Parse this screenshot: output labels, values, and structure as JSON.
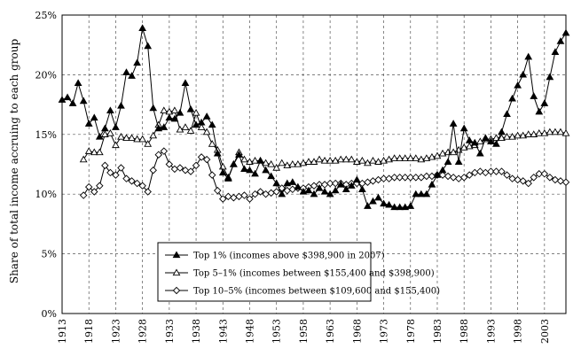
{
  "chart_data": {
    "type": "line",
    "title": "",
    "xlabel": "",
    "ylabel": "Share of total income accruing to each group",
    "xlim": [
      1913,
      2007
    ],
    "ylim": [
      0,
      25
    ],
    "x_ticks": [
      1913,
      1918,
      1923,
      1928,
      1933,
      1938,
      1943,
      1948,
      1953,
      1958,
      1963,
      1968,
      1973,
      1978,
      1983,
      1988,
      1993,
      1998,
      2003
    ],
    "y_ticks": [
      0,
      5,
      10,
      15,
      20,
      25
    ],
    "y_tick_labels": [
      "0%",
      "5%",
      "10%",
      "15%",
      "20%",
      "25%"
    ],
    "grid": "dashed, both axes",
    "legend_position": "bottom-center",
    "series": [
      {
        "name": "Top 1% (incomes above $398,900 in 2007)",
        "marker": "triangle-filled",
        "x": [
          1913,
          1914,
          1915,
          1916,
          1917,
          1918,
          1919,
          1920,
          1921,
          1922,
          1923,
          1924,
          1925,
          1926,
          1927,
          1928,
          1929,
          1930,
          1931,
          1932,
          1933,
          1934,
          1935,
          1936,
          1937,
          1938,
          1939,
          1940,
          1941,
          1942,
          1943,
          1944,
          1945,
          1946,
          1947,
          1948,
          1949,
          1950,
          1951,
          1952,
          1953,
          1954,
          1955,
          1956,
          1957,
          1958,
          1959,
          1960,
          1961,
          1962,
          1963,
          1964,
          1965,
          1966,
          1967,
          1968,
          1969,
          1970,
          1971,
          1972,
          1973,
          1974,
          1975,
          1976,
          1977,
          1978,
          1979,
          1980,
          1981,
          1982,
          1983,
          1984,
          1985,
          1986,
          1987,
          1988,
          1989,
          1990,
          1991,
          1992,
          1993,
          1994,
          1995,
          1996,
          1997,
          1998,
          1999,
          2000,
          2001,
          2002,
          2003,
          2004,
          2005,
          2006,
          2007
        ],
        "values": [
          17.9,
          18.1,
          17.6,
          19.3,
          17.8,
          15.9,
          16.4,
          14.8,
          15.5,
          17.0,
          15.6,
          17.4,
          20.2,
          19.9,
          21.0,
          23.9,
          22.4,
          17.2,
          15.5,
          15.6,
          16.4,
          16.3,
          16.8,
          19.3,
          17.1,
          15.8,
          16.0,
          16.5,
          15.8,
          13.4,
          11.8,
          11.3,
          12.5,
          13.3,
          12.1,
          12.0,
          11.7,
          12.8,
          12.0,
          11.5,
          10.9,
          10.0,
          10.9,
          11.0,
          10.6,
          10.2,
          10.3,
          10.0,
          10.5,
          10.2,
          10.0,
          10.3,
          10.8,
          10.4,
          10.7,
          11.2,
          10.4,
          9.0,
          9.4,
          9.7,
          9.2,
          9.1,
          8.9,
          8.9,
          8.9,
          9.0,
          10.0,
          10.0,
          10.0,
          10.8,
          11.6,
          12.0,
          12.7,
          15.9,
          12.7,
          15.5,
          14.5,
          14.3,
          13.4,
          14.7,
          14.4,
          14.2,
          15.2,
          16.7,
          18.0,
          19.1,
          20.0,
          21.5,
          18.2,
          16.9,
          17.6,
          19.8,
          21.9,
          22.8,
          23.5
        ]
      },
      {
        "name": "Top 5–1% (incomes between $155,400 and $398,900)",
        "marker": "triangle-open",
        "x": [
          1917,
          1918,
          1919,
          1920,
          1921,
          1922,
          1923,
          1924,
          1925,
          1926,
          1927,
          1928,
          1929,
          1930,
          1931,
          1932,
          1933,
          1934,
          1935,
          1936,
          1937,
          1938,
          1939,
          1940,
          1941,
          1942,
          1943,
          1944,
          1945,
          1946,
          1947,
          1948,
          1949,
          1950,
          1951,
          1952,
          1953,
          1954,
          1955,
          1956,
          1957,
          1958,
          1959,
          1960,
          1961,
          1962,
          1963,
          1964,
          1965,
          1966,
          1967,
          1968,
          1969,
          1970,
          1971,
          1972,
          1973,
          1974,
          1975,
          1976,
          1977,
          1978,
          1979,
          1980,
          1981,
          1982,
          1983,
          1984,
          1985,
          1986,
          1987,
          1988,
          1989,
          1990,
          1991,
          1992,
          1993,
          1994,
          1995,
          1996,
          1997,
          1998,
          1999,
          2000,
          2001,
          2002,
          2003,
          2004,
          2005,
          2006,
          2007
        ],
        "values": [
          12.9,
          13.6,
          13.5,
          13.5,
          15.0,
          15.1,
          14.1,
          14.8,
          14.7,
          14.7,
          14.6,
          14.6,
          14.2,
          14.9,
          15.8,
          17.0,
          16.9,
          17.0,
          15.4,
          15.6,
          15.3,
          16.8,
          15.6,
          15.2,
          14.2,
          13.7,
          12.3,
          11.4,
          12.5,
          13.5,
          12.9,
          12.7,
          12.8,
          12.8,
          12.6,
          12.5,
          12.2,
          12.6,
          12.4,
          12.5,
          12.5,
          12.6,
          12.7,
          12.7,
          12.9,
          12.8,
          12.8,
          12.8,
          12.9,
          12.9,
          12.9,
          12.7,
          12.8,
          12.6,
          12.8,
          12.7,
          12.8,
          12.9,
          13.0,
          13.0,
          13.0,
          13.0,
          13.0,
          12.9,
          13.0,
          13.1,
          13.2,
          13.4,
          13.5,
          13.5,
          13.7,
          13.9,
          14.0,
          14.1,
          14.4,
          14.6,
          14.6,
          14.7,
          14.7,
          14.8,
          14.8,
          14.9,
          14.9,
          15.0,
          15.0,
          15.1,
          15.1,
          15.2,
          15.2,
          15.2,
          15.1
        ]
      },
      {
        "name": "Top 10–5% (incomes between $109,600 and $155,400)",
        "marker": "diamond-open",
        "x": [
          1917,
          1918,
          1919,
          1920,
          1921,
          1922,
          1923,
          1924,
          1925,
          1926,
          1927,
          1928,
          1929,
          1930,
          1931,
          1932,
          1933,
          1934,
          1935,
          1936,
          1937,
          1938,
          1939,
          1940,
          1941,
          1942,
          1943,
          1944,
          1945,
          1946,
          1947,
          1948,
          1949,
          1950,
          1951,
          1952,
          1953,
          1954,
          1955,
          1956,
          1957,
          1958,
          1959,
          1960,
          1961,
          1962,
          1963,
          1964,
          1965,
          1966,
          1967,
          1968,
          1969,
          1970,
          1971,
          1972,
          1973,
          1974,
          1975,
          1976,
          1977,
          1978,
          1979,
          1980,
          1981,
          1982,
          1983,
          1984,
          1985,
          1986,
          1987,
          1988,
          1989,
          1990,
          1991,
          1992,
          1993,
          1994,
          1995,
          1996,
          1997,
          1998,
          1999,
          2000,
          2001,
          2002,
          2003,
          2004,
          2005,
          2006,
          2007
        ],
        "values": [
          9.9,
          10.6,
          10.2,
          10.7,
          12.4,
          11.8,
          11.6,
          12.2,
          11.3,
          11.1,
          10.9,
          10.7,
          10.2,
          12.0,
          13.3,
          13.6,
          12.5,
          12.1,
          12.2,
          12.0,
          11.9,
          12.4,
          13.1,
          12.9,
          11.6,
          10.3,
          9.6,
          9.8,
          9.7,
          9.8,
          9.9,
          9.6,
          10.0,
          10.2,
          10.0,
          10.1,
          10.2,
          10.5,
          10.3,
          10.4,
          10.5,
          10.5,
          10.6,
          10.7,
          10.8,
          10.8,
          10.9,
          10.9,
          10.9,
          10.8,
          10.9,
          10.9,
          10.9,
          11.0,
          11.1,
          11.2,
          11.3,
          11.3,
          11.4,
          11.4,
          11.4,
          11.4,
          11.4,
          11.4,
          11.5,
          11.5,
          11.6,
          11.6,
          11.5,
          11.4,
          11.3,
          11.4,
          11.6,
          11.8,
          11.9,
          11.8,
          11.9,
          11.9,
          11.9,
          11.6,
          11.3,
          11.2,
          11.1,
          10.9,
          11.4,
          11.7,
          11.7,
          11.4,
          11.2,
          11.1,
          11.0
        ]
      }
    ]
  }
}
